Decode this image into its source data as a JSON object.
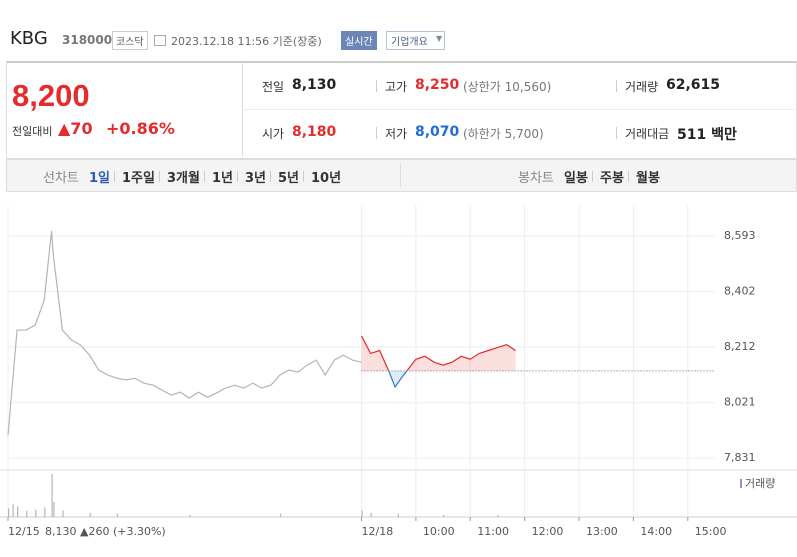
{
  "header": {
    "name": "KBG",
    "code": "318000",
    "market": "코스닥",
    "time": "2023.12.18 11:56 기준(장중)",
    "realtime": "실시간",
    "overview": "기업개요"
  },
  "quote": {
    "price": "8,200",
    "change_label": "전일대비",
    "change": "▲70",
    "change_pct": "+0.86%",
    "stats": [
      {
        "label": "전일",
        "value": "8,130"
      },
      {
        "label": "고가",
        "value": "8,250",
        "note": "(상한가 10,560)",
        "color": "#e52b2b"
      },
      {
        "label": "거래량",
        "value": "62,615"
      },
      {
        "label": "시가",
        "value": "8,180",
        "color": "#e52b2b"
      },
      {
        "label": "저가",
        "value": "8,070",
        "note": "(하한가 5,700)",
        "color": "#1f6fd1"
      },
      {
        "label": "거래대금",
        "value": "511 백만"
      }
    ]
  },
  "tabs": {
    "line_label": "선차트",
    "line": [
      "1일",
      "1주일",
      "3개월",
      "1년",
      "3년",
      "5년",
      "10년"
    ],
    "candle_label": "봉차트",
    "candle": [
      "일봉",
      "주봉",
      "월봉"
    ]
  },
  "chart_data": {
    "type": "line",
    "ylim": [
      7797,
      8675
    ],
    "yticks": [
      {
        "value": 8593,
        "label": "8,593"
      },
      {
        "value": 8402,
        "label": "8,402"
      },
      {
        "value": 8212,
        "label": "8,212"
      },
      {
        "value": 8021,
        "label": "8,021"
      },
      {
        "value": 7831,
        "label": "7,831"
      }
    ],
    "xlim": [
      0,
      780
    ],
    "xticks": [
      {
        "value": 0,
        "label": "12/15"
      },
      {
        "value": 390,
        "label": "12/18"
      },
      {
        "value": 450,
        "label": "10:00"
      },
      {
        "value": 510,
        "label": "11:00"
      },
      {
        "value": 570,
        "label": "12:00"
      },
      {
        "value": 630,
        "label": "13:00"
      },
      {
        "value": 690,
        "label": "14:00"
      },
      {
        "value": 750,
        "label": "15:00"
      }
    ],
    "baseline": 8130,
    "series": [
      {
        "color": "#b4b4b4",
        "x": [
          0,
          10,
          20,
          30,
          40,
          48,
          50,
          60,
          70,
          80,
          90,
          100,
          110,
          120,
          130,
          140,
          150,
          160,
          170,
          180,
          190,
          200,
          210,
          220,
          230,
          240,
          250,
          260,
          270,
          280,
          290,
          300,
          310,
          320,
          330,
          340,
          350,
          360,
          370,
          380,
          390
        ],
        "values": [
          7910,
          8270,
          8270,
          8287,
          8373,
          8610,
          8527,
          8270,
          8236,
          8219,
          8184,
          8133,
          8116,
          8105,
          8099,
          8105,
          8088,
          8081,
          8064,
          8047,
          8057,
          8037,
          8057,
          8040,
          8054,
          8071,
          8081,
          8071,
          8088,
          8071,
          8081,
          8116,
          8133,
          8126,
          8150,
          8167,
          8116,
          8167,
          8184,
          8167,
          8160
        ]
      },
      {
        "color": "#e52b2b",
        "down_color": "#2b79d8",
        "x": [
          390,
          400,
          410,
          420,
          427,
          435,
          445,
          450,
          460,
          470,
          480,
          490,
          500,
          510,
          520,
          530,
          540,
          550,
          560
        ],
        "values": [
          8250,
          8190,
          8200,
          8130,
          8075,
          8110,
          8150,
          8170,
          8180,
          8160,
          8150,
          8160,
          8180,
          8170,
          8190,
          8200,
          8210,
          8220,
          8200
        ]
      }
    ],
    "volume": {
      "label": "거래량",
      "color": "#b4b4b4",
      "x": [
        0,
        5,
        10,
        20,
        30,
        40,
        48,
        50,
        60,
        90,
        120,
        200,
        300,
        390,
        400,
        430,
        480,
        540
      ],
      "values": [
        8,
        12,
        10,
        6,
        7,
        9,
        40,
        14,
        6,
        4,
        3,
        2,
        3,
        6,
        4,
        3,
        2,
        2
      ]
    },
    "prev_summary": "8,130 ▲260 (+3.30%)"
  }
}
